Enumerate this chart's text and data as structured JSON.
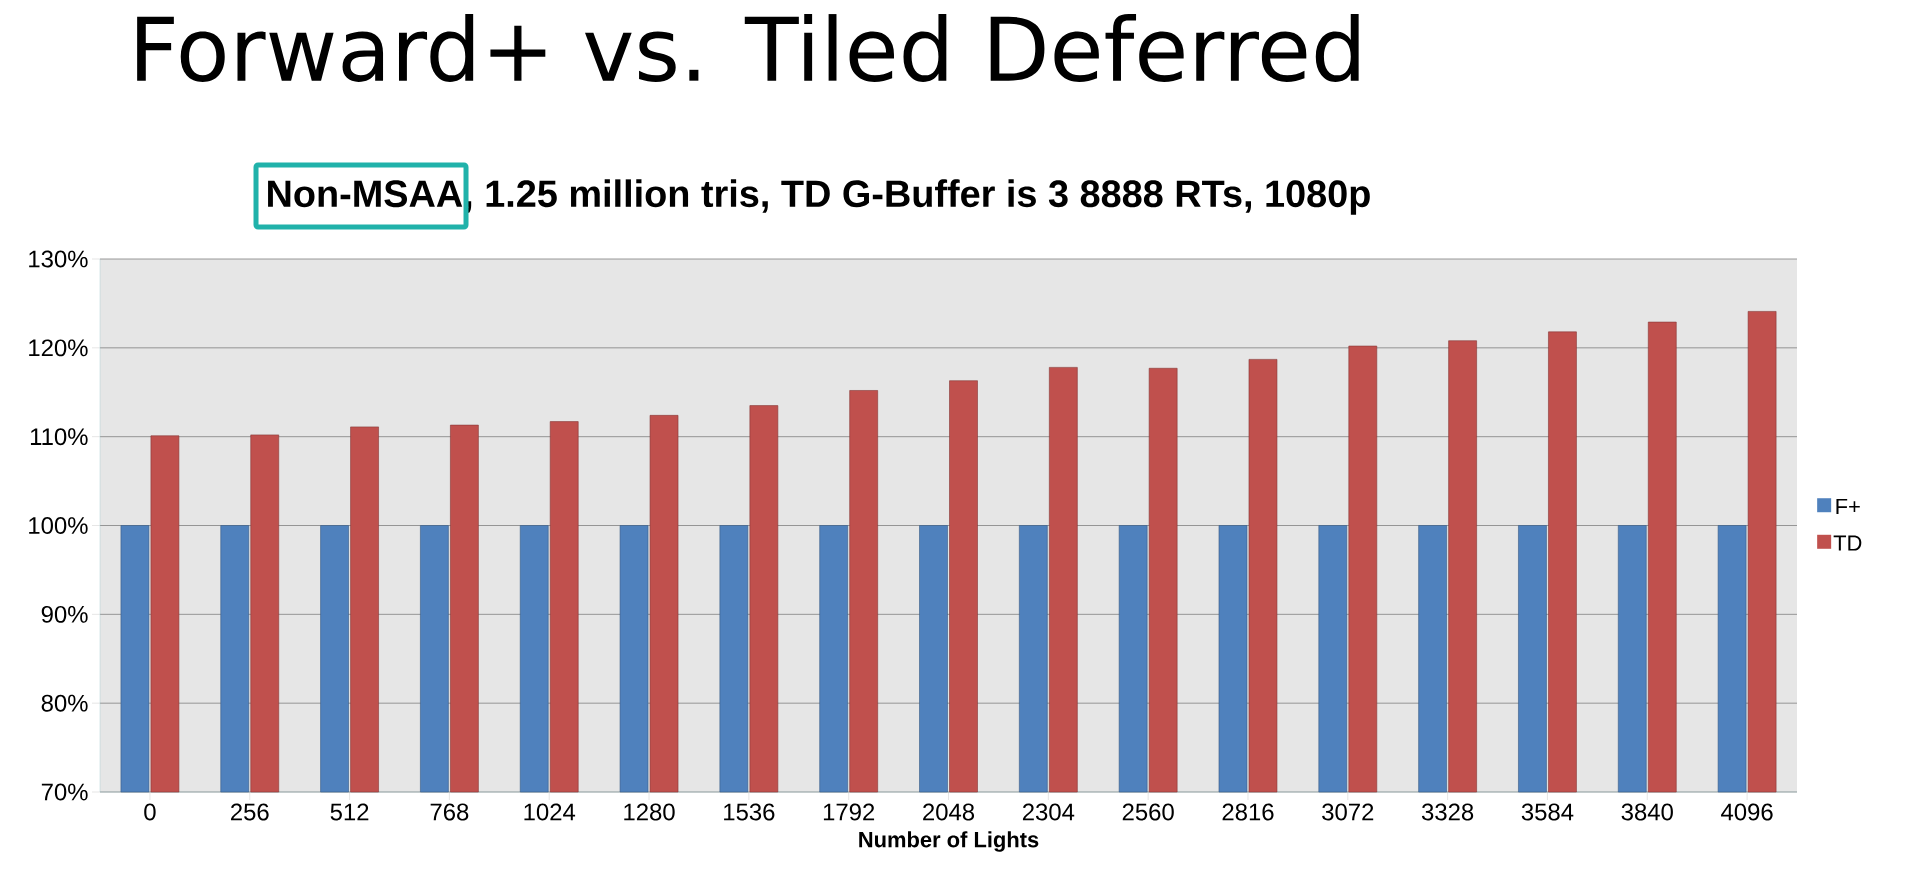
{
  "chart_data": {
    "type": "bar",
    "title": "Forward+ vs. Tiled Deferred",
    "subtitle": "Non-MSAA, 1.25 million tris, TD G-Buffer is 3 8888 RTs, 1080p",
    "xlabel": "Number of Lights",
    "categories": [
      "0",
      "256",
      "512",
      "768",
      "1024",
      "1280",
      "1536",
      "1792",
      "2048",
      "2304",
      "2560",
      "2816",
      "3072",
      "3328",
      "3584",
      "3840",
      "4096"
    ],
    "series": [
      {
        "name": "F+",
        "color": "#4f81bd",
        "values": [
          100,
          100,
          100,
          100,
          100,
          100,
          100,
          100,
          100,
          100,
          100,
          100,
          100,
          100,
          100,
          100,
          100
        ]
      },
      {
        "name": "TD",
        "color": "#c0504d",
        "values": [
          110.1,
          110.2,
          111.1,
          111.3,
          111.7,
          112.4,
          113.5,
          115.2,
          116.3,
          117.8,
          117.7,
          118.7,
          120.2,
          120.8,
          121.8,
          122.9,
          124.1
        ]
      }
    ],
    "ylim": [
      70,
      130
    ],
    "yticks": [
      {
        "value": 70,
        "label": "70%"
      },
      {
        "value": 80,
        "label": "80%"
      },
      {
        "value": 90,
        "label": "90%"
      },
      {
        "value": 100,
        "label": "100%"
      },
      {
        "value": 110,
        "label": "110%"
      },
      {
        "value": 120,
        "label": "120%"
      },
      {
        "value": 130,
        "label": "130%"
      }
    ],
    "grid": "y",
    "legend": "right"
  }
}
